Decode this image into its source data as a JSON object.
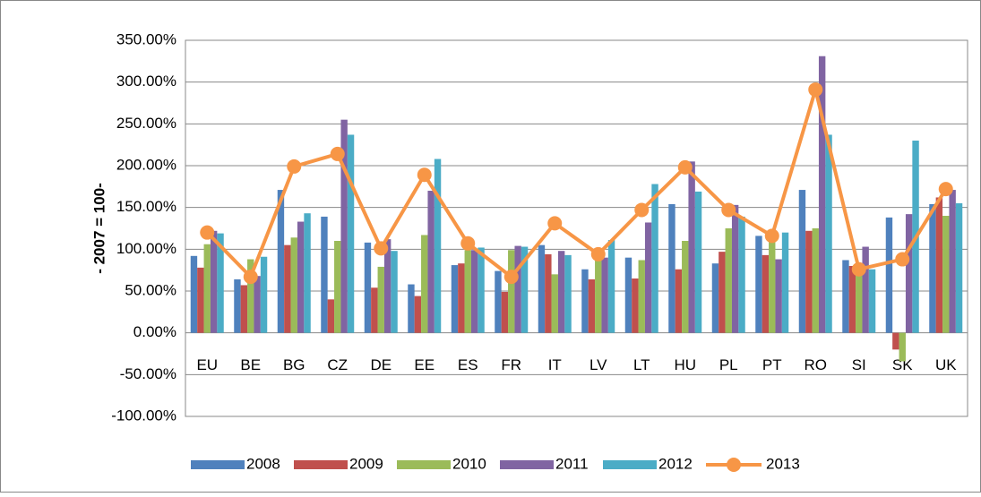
{
  "chart_data": {
    "type": "bar",
    "y_label": "- 2007 = 100-",
    "categories": [
      "EU",
      "BE",
      "BG",
      "CZ",
      "DE",
      "EE",
      "ES",
      "FR",
      "IT",
      "LV",
      "LT",
      "HU",
      "PL",
      "PT",
      "RO",
      "SI",
      "SK",
      "UK"
    ],
    "series": [
      {
        "name": "2008",
        "type": "bar",
        "color": "#4f81bd",
        "values": [
          92,
          64,
          171,
          139,
          108,
          58,
          81,
          74,
          105,
          76,
          90,
          154,
          83,
          116,
          171,
          87,
          138,
          154
        ]
      },
      {
        "name": "2009",
        "type": "bar",
        "color": "#c0504d",
        "values": [
          78,
          57,
          105,
          40,
          54,
          44,
          83,
          49,
          94,
          64,
          65,
          76,
          97,
          93,
          122,
          80,
          -20,
          162
        ]
      },
      {
        "name": "2010",
        "type": "bar",
        "color": "#9bbb59",
        "values": [
          106,
          88,
          114,
          110,
          79,
          117,
          99,
          99,
          70,
          100,
          87,
          110,
          125,
          118,
          125,
          77,
          -34,
          140
        ]
      },
      {
        "name": "2011",
        "type": "bar",
        "color": "#8064a2",
        "values": [
          122,
          68,
          133,
          255,
          112,
          170,
          99,
          104,
          98,
          90,
          132,
          205,
          153,
          88,
          331,
          103,
          142,
          171
        ]
      },
      {
        "name": "2012",
        "type": "bar",
        "color": "#4bacc6",
        "values": [
          119,
          91,
          143,
          237,
          98,
          208,
          102,
          103,
          93,
          111,
          178,
          169,
          139,
          120,
          237,
          76,
          230,
          155
        ]
      },
      {
        "name": "2013",
        "type": "line",
        "color": "#f79646",
        "values": [
          120,
          67,
          199,
          214,
          101,
          189,
          107,
          67,
          131,
          94,
          147,
          198,
          147,
          116,
          291,
          76,
          88,
          172
        ]
      }
    ],
    "ylim": [
      -100,
      350
    ],
    "yticks": [
      {
        "value": -100,
        "label": "-100.00%"
      },
      {
        "value": -50,
        "label": "-50.00%"
      },
      {
        "value": 0,
        "label": "0.00%"
      },
      {
        "value": 50,
        "label": "50.00%"
      },
      {
        "value": 100,
        "label": "100.00%"
      },
      {
        "value": 150,
        "label": "150.00%"
      },
      {
        "value": 200,
        "label": "200.00%"
      },
      {
        "value": 250,
        "label": "250.00%"
      },
      {
        "value": 300,
        "label": "300.00%"
      },
      {
        "value": 350,
        "label": "350.00%"
      }
    ],
    "grid": true,
    "legend": "bottom"
  }
}
